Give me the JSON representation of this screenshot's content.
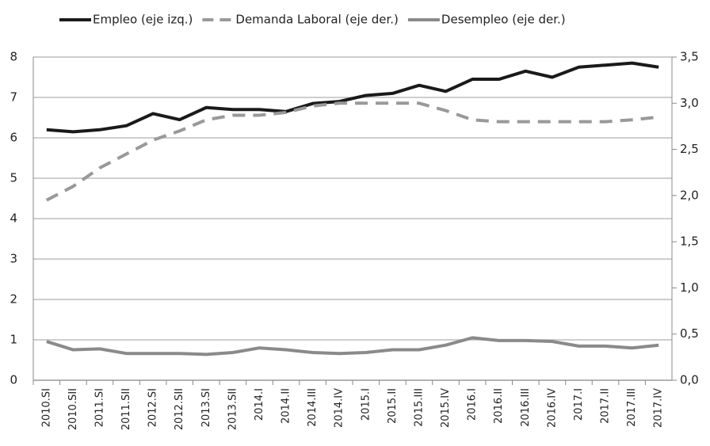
{
  "chart_data": {
    "type": "line",
    "categories": [
      "2010.SI",
      "2010.SII",
      "2011.SI",
      "2011.SII",
      "2012.SI",
      "2012.SII",
      "2013.SI",
      "2013.SII",
      "2014.I",
      "2014.II",
      "2014.III",
      "2014.IV",
      "2015.I",
      "2015.II",
      "2015.III",
      "2015.IV",
      "2016.I",
      "2016.II",
      "2016.III",
      "2016.IV",
      "2017.I",
      "2017.II",
      "2017.III",
      "2017.IV"
    ],
    "series": [
      {
        "name": "Empleo (eje izq.)",
        "color": "#1a1a1a",
        "dashed": false,
        "values": [
          6.2,
          6.15,
          6.2,
          6.3,
          6.6,
          6.45,
          6.75,
          6.7,
          6.7,
          6.65,
          6.85,
          6.9,
          7.05,
          7.1,
          7.3,
          7.15,
          7.45,
          7.45,
          7.65,
          7.5,
          7.75,
          7.8,
          7.85,
          7.75
        ]
      },
      {
        "name": "Demanda Laboral (eje der.)",
        "color": "#999999",
        "dashed": true,
        "axis": "y2",
        "values": [
          1.95,
          2.1,
          2.3,
          2.45,
          2.6,
          2.7,
          2.82,
          2.87,
          2.87,
          2.9,
          2.97,
          3.0,
          3.0,
          3.0,
          3.0,
          2.92,
          2.82,
          2.8,
          2.8,
          2.8,
          2.8,
          2.8,
          2.82,
          2.85
        ]
      },
      {
        "name": "Desempleo (eje der.)",
        "color": "#8a8a8a",
        "dashed": false,
        "axis": "y2",
        "values": [
          0.42,
          0.33,
          0.34,
          0.29,
          0.29,
          0.29,
          0.28,
          0.3,
          0.35,
          0.33,
          0.3,
          0.29,
          0.3,
          0.33,
          0.33,
          0.38,
          0.46,
          0.43,
          0.43,
          0.42,
          0.37,
          0.37,
          0.35,
          0.38
        ]
      }
    ],
    "ylim": [
      0,
      8
    ],
    "yticks": [
      0,
      1,
      2,
      3,
      4,
      5,
      6,
      7,
      8
    ],
    "y2lim": [
      0,
      3.5
    ],
    "y2ticks": [
      {
        "value": 0,
        "label": "0,0"
      },
      {
        "value": 0.5,
        "label": "0,5"
      },
      {
        "value": 1,
        "label": "1,0"
      },
      {
        "value": 1.5,
        "label": "1,5"
      },
      {
        "value": 2,
        "label": "2,0"
      },
      {
        "value": 2.5,
        "label": "2,5"
      },
      {
        "value": 3,
        "label": "3,0"
      },
      {
        "value": 3.5,
        "label": "3,5"
      }
    ],
    "grid": true,
    "legend": "top"
  }
}
